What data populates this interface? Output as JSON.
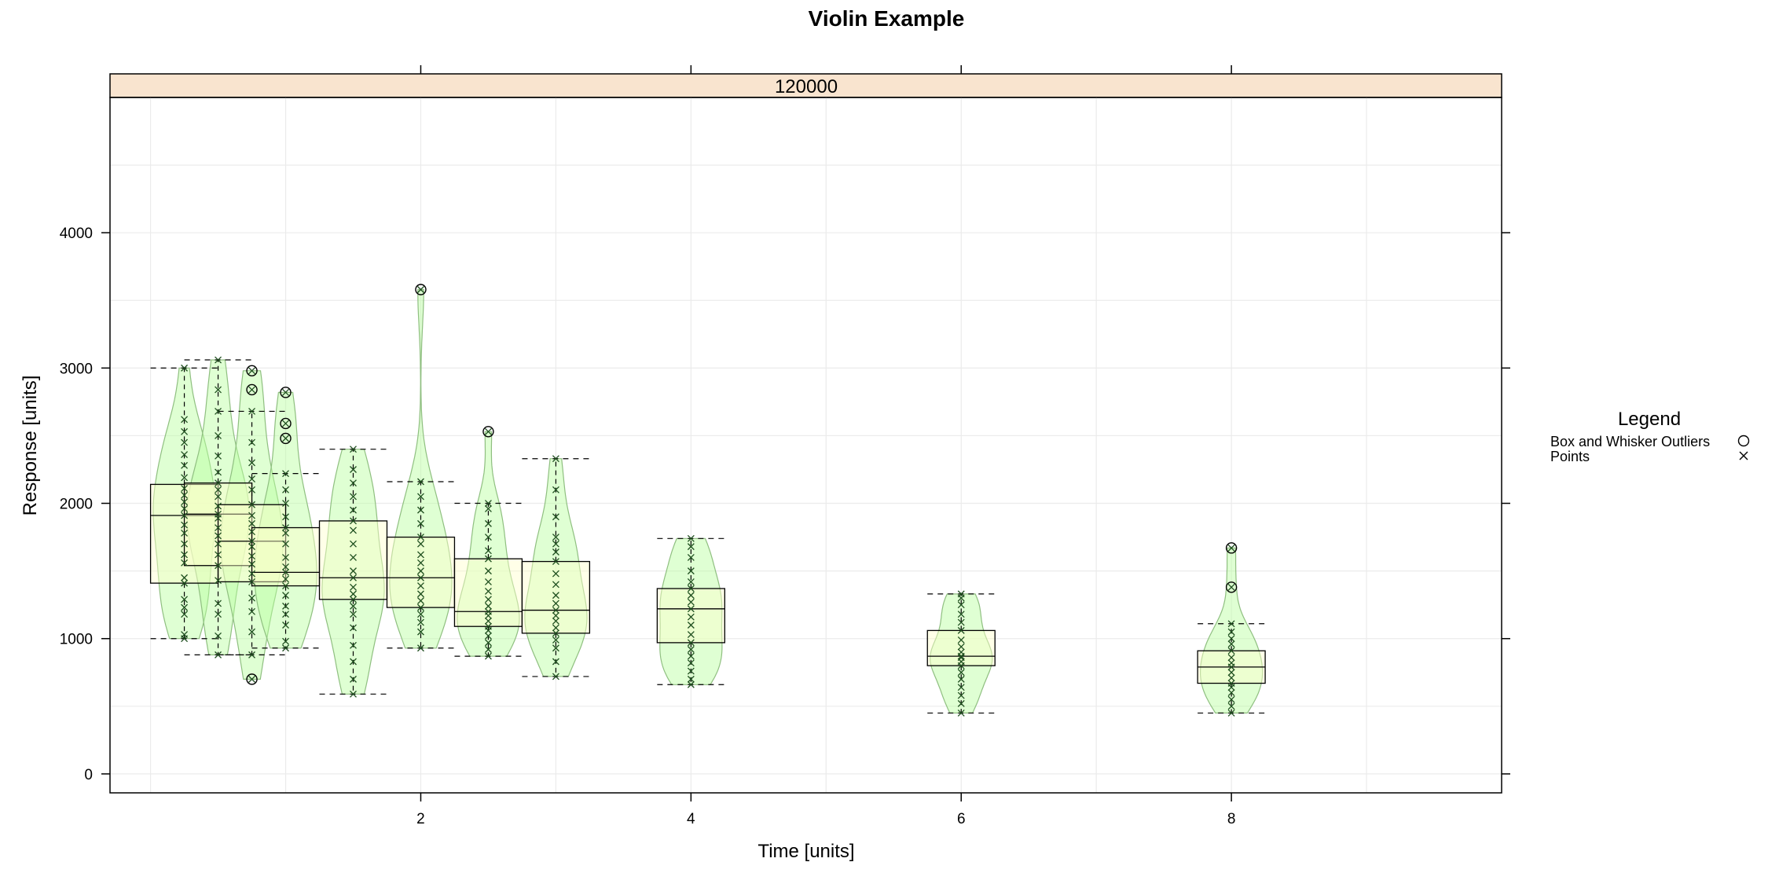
{
  "chart_data": {
    "type": "violin",
    "title": "Violin Example",
    "panel_label": "120000",
    "xlabel": "Time [units]",
    "ylabel": "Response [units]",
    "xlim": [
      -0.3,
      10
    ],
    "ylim": [
      -140,
      5000
    ],
    "x_ticks": [
      2,
      4,
      6,
      8
    ],
    "y_ticks": [
      0,
      1000,
      2000,
      3000,
      4000
    ],
    "grid": true,
    "legend": {
      "title": "Legend",
      "placement": "right",
      "entries": [
        {
          "label": "Box and Whisker Outliers",
          "symbol": "circle"
        },
        {
          "label": "Points",
          "symbol": "cross"
        }
      ]
    },
    "colors": {
      "violin_fill": "#b8ff9e",
      "violin_stroke": "#8fbf80",
      "box_fill": "#ffffcc",
      "strip": "#f9e4cf",
      "points": "#1f4f1f"
    },
    "groups": [
      {
        "x": 0.25,
        "q1": 1410,
        "median": 1910,
        "q3": 2140,
        "whisker_low": 1000,
        "whisker_high": 3000,
        "outliers": [],
        "points": [
          1000,
          1030,
          1180,
          1230,
          1290,
          1410,
          1450,
          1560,
          1620,
          1700,
          1780,
          1840,
          1910,
          1960,
          2010,
          2060,
          2110,
          2190,
          2280,
          2360,
          2450,
          2530,
          2620,
          3000
        ]
      },
      {
        "x": 0.5,
        "q1": 1540,
        "median": 1920,
        "q3": 2150,
        "whisker_low": 880,
        "whisker_high": 3060,
        "outliers": [],
        "points": [
          880,
          1020,
          1180,
          1260,
          1430,
          1540,
          1620,
          1700,
          1760,
          1820,
          1890,
          1920,
          1980,
          2050,
          2100,
          2150,
          2230,
          2350,
          2500,
          2680,
          2840,
          3060
        ]
      },
      {
        "x": 0.75,
        "q1": 1420,
        "median": 1720,
        "q3": 1990,
        "whisker_low": 880,
        "whisker_high": 2680,
        "outliers": [
          700,
          2840,
          2980
        ],
        "points": [
          880,
          1050,
          1200,
          1300,
          1420,
          1480,
          1550,
          1610,
          1680,
          1720,
          1790,
          1850,
          1910,
          1990,
          2100,
          2180,
          2300,
          2450,
          2680
        ]
      },
      {
        "x": 1,
        "q1": 1390,
        "median": 1490,
        "q3": 1820,
        "whisker_low": 930,
        "whisker_high": 2220,
        "outliers": [
          2480,
          2590,
          2820
        ],
        "points": [
          930,
          980,
          1100,
          1180,
          1240,
          1320,
          1390,
          1440,
          1490,
          1530,
          1600,
          1700,
          1780,
          1820,
          1900,
          2000,
          2100,
          2220
        ]
      },
      {
        "x": 1.5,
        "q1": 1290,
        "median": 1450,
        "q3": 1870,
        "whisker_low": 590,
        "whisker_high": 2400,
        "outliers": [],
        "points": [
          590,
          700,
          830,
          950,
          1080,
          1180,
          1240,
          1290,
          1330,
          1380,
          1450,
          1500,
          1600,
          1700,
          1800,
          1870,
          1950,
          2050,
          2150,
          2250,
          2400
        ]
      },
      {
        "x": 2,
        "q1": 1230,
        "median": 1450,
        "q3": 1750,
        "whisker_low": 930,
        "whisker_high": 2160,
        "outliers": [
          3580
        ],
        "points": [
          930,
          1050,
          1120,
          1180,
          1230,
          1280,
          1330,
          1390,
          1450,
          1500,
          1560,
          1620,
          1700,
          1750,
          1850,
          1950,
          2050,
          2160
        ]
      },
      {
        "x": 2.5,
        "q1": 1090,
        "median": 1200,
        "q3": 1590,
        "whisker_low": 870,
        "whisker_high": 2000,
        "outliers": [
          2530
        ],
        "points": [
          870,
          920,
          970,
          1020,
          1060,
          1090,
          1130,
          1170,
          1200,
          1240,
          1290,
          1350,
          1420,
          1500,
          1590,
          1650,
          1750,
          1850,
          1960,
          2000
        ]
      },
      {
        "x": 3,
        "q1": 1040,
        "median": 1210,
        "q3": 1570,
        "whisker_low": 720,
        "whisker_high": 2330,
        "outliers": [],
        "points": [
          720,
          830,
          930,
          990,
          1040,
          1080,
          1130,
          1170,
          1210,
          1260,
          1320,
          1400,
          1480,
          1570,
          1640,
          1700,
          1750,
          1900,
          2100,
          2330
        ]
      },
      {
        "x": 4,
        "q1": 970,
        "median": 1220,
        "q3": 1370,
        "whisker_low": 660,
        "whisker_high": 1740,
        "outliers": [],
        "points": [
          660,
          700,
          760,
          820,
          870,
          920,
          970,
          1030,
          1100,
          1160,
          1220,
          1270,
          1320,
          1370,
          1420,
          1500,
          1600,
          1680,
          1740
        ]
      },
      {
        "x": 6,
        "q1": 800,
        "median": 870,
        "q3": 1060,
        "whisker_low": 450,
        "whisker_high": 1330,
        "outliers": [],
        "points": [
          450,
          520,
          580,
          640,
          700,
          750,
          800,
          830,
          860,
          870,
          900,
          940,
          990,
          1060,
          1120,
          1180,
          1250,
          1300,
          1330
        ]
      },
      {
        "x": 8,
        "q1": 670,
        "median": 790,
        "q3": 910,
        "whisker_low": 450,
        "whisker_high": 1110,
        "outliers": [
          1380,
          1670
        ],
        "points": [
          450,
          500,
          550,
          600,
          640,
          670,
          710,
          750,
          790,
          820,
          860,
          910,
          960,
          1000,
          1050,
          1110
        ]
      }
    ]
  }
}
